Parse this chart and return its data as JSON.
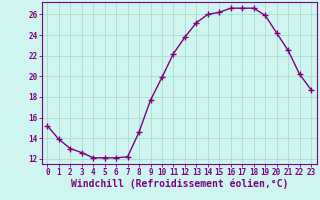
{
  "x": [
    0,
    1,
    2,
    3,
    4,
    5,
    6,
    7,
    8,
    9,
    10,
    11,
    12,
    13,
    14,
    15,
    16,
    17,
    18,
    19,
    20,
    21,
    22,
    23
  ],
  "y": [
    15.2,
    13.9,
    13.0,
    12.6,
    12.1,
    12.1,
    12.1,
    12.2,
    14.6,
    17.7,
    19.9,
    22.2,
    23.8,
    25.2,
    26.0,
    26.2,
    26.6,
    26.6,
    26.6,
    25.9,
    24.2,
    22.5,
    20.2,
    18.7
  ],
  "line_color": "#800080",
  "marker": "+",
  "marker_size": 4,
  "bg_color": "#cef5ef",
  "grid_color": "#aaddcc",
  "xlabel": "Windchill (Refroidissement éolien,°C)",
  "xlabel_color": "#800080",
  "ylim": [
    11.5,
    27.2
  ],
  "xlim": [
    -0.5,
    23.5
  ],
  "yticks": [
    12,
    14,
    16,
    18,
    20,
    22,
    24,
    26
  ],
  "xticks": [
    0,
    1,
    2,
    3,
    4,
    5,
    6,
    7,
    8,
    9,
    10,
    11,
    12,
    13,
    14,
    15,
    16,
    17,
    18,
    19,
    20,
    21,
    22,
    23
  ],
  "tick_color": "#800080",
  "tick_fontsize": 5.5,
  "xlabel_fontsize": 7.0,
  "axis_color": "#800080",
  "spine_linewidth": 0.8,
  "line_width": 1.0
}
